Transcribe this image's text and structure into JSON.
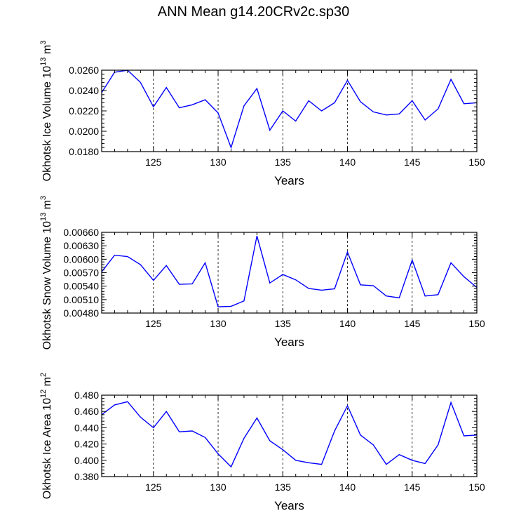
{
  "title": "ANN Mean g14.20CRv2c.sp30",
  "chart_data": [
    {
      "type": "line",
      "xlabel": "Years",
      "ylabel": "Okhotsk Ice Volume 10",
      "ylabel_exp": "13",
      "ylabel_unit": "m",
      "ylabel_unit_exp": "3",
      "xlim": [
        121,
        150
      ],
      "ylim": [
        0.018,
        0.026
      ],
      "xticks": [
        125,
        130,
        135,
        140,
        145,
        150
      ],
      "yticks": [
        "0.0180",
        "0.0200",
        "0.0220",
        "0.0240",
        "0.0260"
      ],
      "ytick_values": [
        0.018,
        0.02,
        0.022,
        0.024,
        0.026
      ],
      "grid_x": "dashed",
      "color": "#0000ff",
      "x": [
        121,
        122,
        123,
        124,
        125,
        126,
        127,
        128,
        129,
        130,
        131,
        132,
        133,
        134,
        135,
        136,
        137,
        138,
        139,
        140,
        141,
        142,
        143,
        144,
        145,
        146,
        147,
        148,
        149,
        150
      ],
      "values": [
        0.0238,
        0.0258,
        0.026,
        0.0248,
        0.0224,
        0.0243,
        0.0223,
        0.0226,
        0.0231,
        0.0218,
        0.0184,
        0.0225,
        0.0242,
        0.0201,
        0.022,
        0.021,
        0.023,
        0.022,
        0.0228,
        0.025,
        0.0229,
        0.0219,
        0.0216,
        0.0217,
        0.023,
        0.0211,
        0.0222,
        0.0251,
        0.0227,
        0.0228
      ]
    },
    {
      "type": "line",
      "xlabel": "Years",
      "ylabel": "Okhotsk Snow Volume 10",
      "ylabel_exp": "13",
      "ylabel_unit": "m",
      "ylabel_unit_exp": "3",
      "xlim": [
        121,
        150
      ],
      "ylim": [
        0.0048,
        0.0066
      ],
      "xticks": [
        125,
        130,
        135,
        140,
        145,
        150
      ],
      "yticks": [
        "0.00480",
        "0.00510",
        "0.00540",
        "0.00570",
        "0.00600",
        "0.00630",
        "0.00660"
      ],
      "ytick_values": [
        0.0048,
        0.0051,
        0.0054,
        0.0057,
        0.006,
        0.0063,
        0.0066
      ],
      "grid_x": "dashed",
      "color": "#0000ff",
      "x": [
        121,
        122,
        123,
        124,
        125,
        126,
        127,
        128,
        129,
        130,
        131,
        132,
        133,
        134,
        135,
        136,
        137,
        138,
        139,
        140,
        141,
        142,
        143,
        144,
        145,
        146,
        147,
        148,
        149,
        150
      ],
      "values": [
        0.00572,
        0.00609,
        0.00606,
        0.00588,
        0.00553,
        0.00586,
        0.00544,
        0.00545,
        0.00592,
        0.00494,
        0.00495,
        0.00507,
        0.00652,
        0.00547,
        0.00566,
        0.00554,
        0.00535,
        0.00531,
        0.00534,
        0.00616,
        0.00543,
        0.00541,
        0.00518,
        0.00514,
        0.00598,
        0.00518,
        0.00521,
        0.00592,
        0.00561,
        0.00537
      ]
    },
    {
      "type": "line",
      "xlabel": "Years",
      "ylabel": "Okhotsk Ice Area 10",
      "ylabel_exp": "12",
      "ylabel_unit": "m",
      "ylabel_unit_exp": "2",
      "xlim": [
        121,
        150
      ],
      "ylim": [
        0.38,
        0.48
      ],
      "xticks": [
        125,
        130,
        135,
        140,
        145,
        150
      ],
      "yticks": [
        "0.380",
        "0.400",
        "0.420",
        "0.440",
        "0.460",
        "0.480"
      ],
      "ytick_values": [
        0.38,
        0.4,
        0.42,
        0.44,
        0.46,
        0.48
      ],
      "grid_x": "dashed",
      "color": "#0000ff",
      "x": [
        121,
        122,
        123,
        124,
        125,
        126,
        127,
        128,
        129,
        130,
        131,
        132,
        133,
        134,
        135,
        136,
        137,
        138,
        139,
        140,
        141,
        142,
        143,
        144,
        145,
        146,
        147,
        148,
        149,
        150
      ],
      "values": [
        0.456,
        0.468,
        0.472,
        0.453,
        0.44,
        0.46,
        0.435,
        0.436,
        0.428,
        0.408,
        0.392,
        0.427,
        0.452,
        0.424,
        0.413,
        0.4,
        0.397,
        0.395,
        0.436,
        0.467,
        0.431,
        0.419,
        0.395,
        0.407,
        0.4,
        0.396,
        0.419,
        0.471,
        0.43,
        0.431
      ]
    }
  ]
}
